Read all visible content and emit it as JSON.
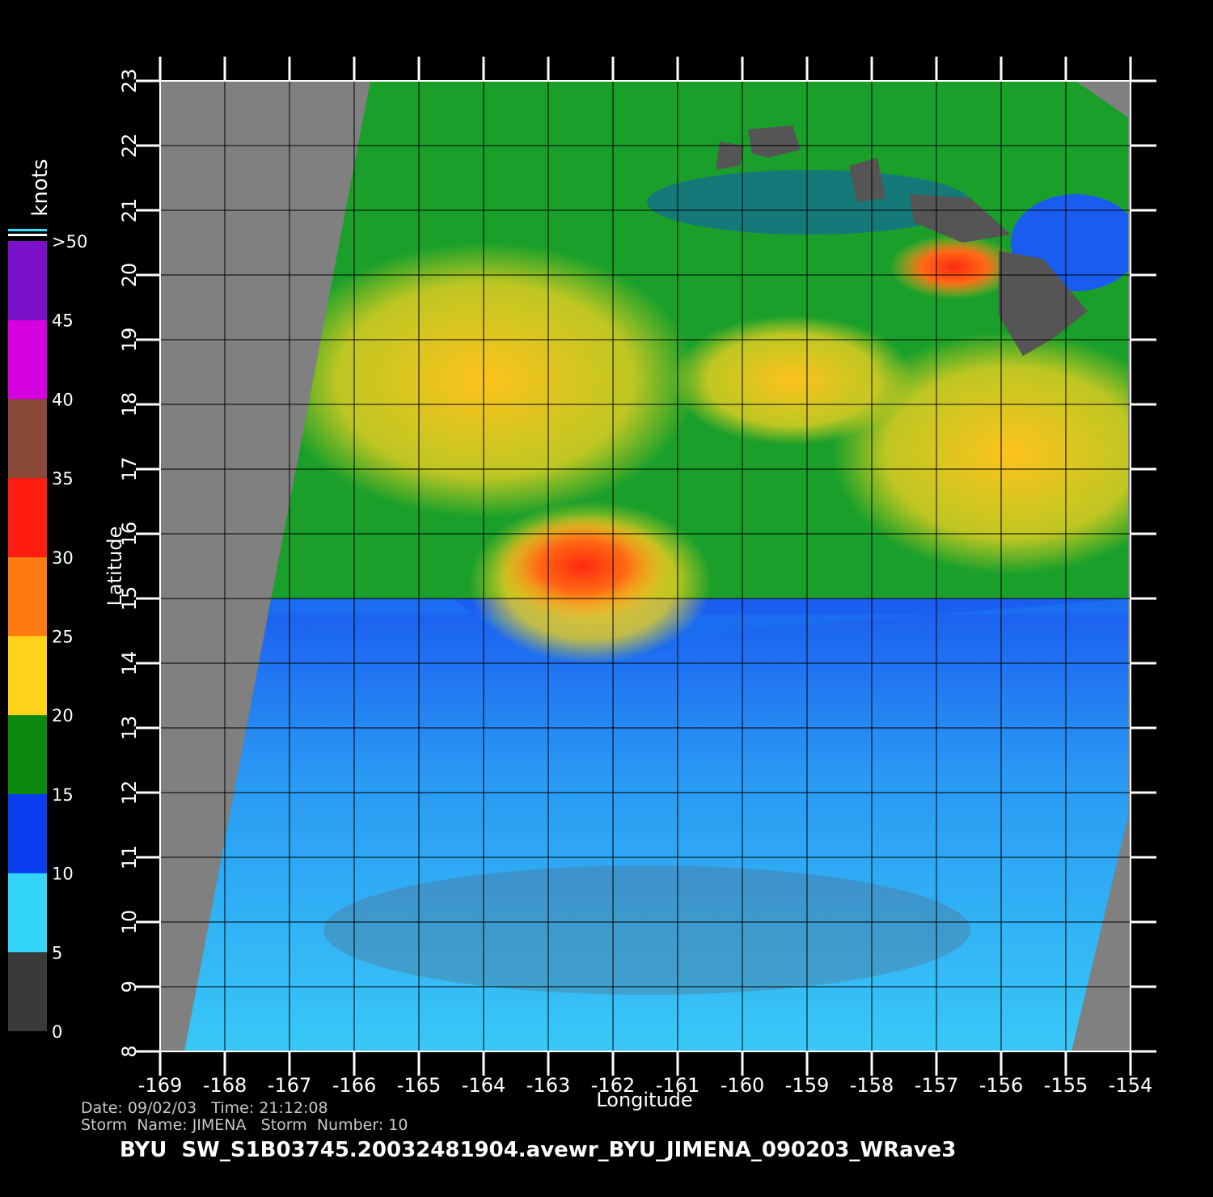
{
  "chart_data": {
    "type": "map",
    "xlabel": "Longitude",
    "ylabel": "Latitude",
    "xlim": [
      -169,
      -154
    ],
    "ylim": [
      8,
      23
    ],
    "xticks": [
      -169,
      -168,
      -167,
      -166,
      -165,
      -164,
      -163,
      -162,
      -161,
      -160,
      -159,
      -158,
      -157,
      -156,
      -155,
      -154
    ],
    "yticks": [
      8,
      9,
      10,
      11,
      12,
      13,
      14,
      15,
      16,
      17,
      18,
      19,
      20,
      21,
      22,
      23
    ],
    "grid": true,
    "colorbar": {
      "label": "knots",
      "ticks": [
        0,
        5,
        10,
        15,
        20,
        25,
        30,
        35,
        40,
        45,
        {
          "value": 50,
          "label": ">50"
        }
      ],
      "colors": [
        "#3a3a3a",
        "#33d6f6",
        "#0a3cf0",
        "#0c8a10",
        "#ffd21c",
        "#ff7a10",
        "#ff1c10",
        "#8a4a38",
        "#d400e0",
        "#7a10c8"
      ]
    },
    "info": [
      "Date: 09/02/03   Time: 21:12:08",
      "Storm  Name: JIMENA   Storm  Number: 10"
    ],
    "title": "BYU  SW_S1B03745.20032481904.avewr_BYU_JIMENA_090203_WRave3"
  }
}
